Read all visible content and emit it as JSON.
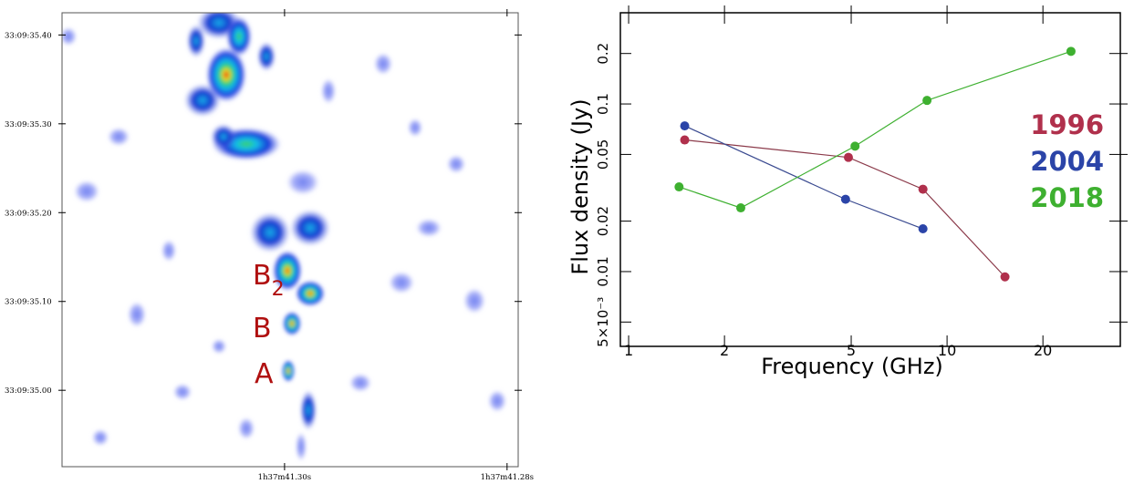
{
  "chart_data": [
    {
      "type": "image",
      "xlim": [
        41.32,
        41.279
      ],
      "xticks": [
        {
          "value": 41.3,
          "label": "1h37m41.30s"
        },
        {
          "value": 41.28,
          "label": "1h37m41.28s"
        }
      ],
      "ylim": [
        34.914,
        35.425
      ],
      "yticks": [
        {
          "value": 35.4,
          "label": "33:09:35.40"
        },
        {
          "value": 35.3,
          "label": "33:09:35.30"
        },
        {
          "value": 35.2,
          "label": "33:09:35.20"
        },
        {
          "value": 35.1,
          "label": "33:09:35.10"
        },
        {
          "value": 35.0,
          "label": "33:09:35.00"
        }
      ],
      "annotations": [
        {
          "text": "B",
          "sub": "2"
        },
        {
          "text": "B"
        },
        {
          "text": "A"
        }
      ]
    },
    {
      "type": "line",
      "xscale": "log",
      "yscale": "log",
      "x_label": "Frequency (GHz)",
      "y_label": "Flux density (Jy)",
      "xlim": [
        0.942,
        35.0
      ],
      "xticks": [
        1,
        2,
        5,
        10,
        20
      ],
      "ylim": [
        0.00358,
        0.35
      ],
      "yticks": [
        0.2,
        0.1,
        0.05,
        0.02,
        0.01,
        {
          "value": 0.005,
          "label": "5×10⁻³"
        }
      ],
      "series": [
        {
          "name": "1996",
          "color": "#b0304c",
          "line_color": "#8b3a4a",
          "x": [
            1.5,
            4.9,
            8.4,
            15.2
          ],
          "values": [
            0.061,
            0.048,
            0.031,
            0.0093
          ]
        },
        {
          "name": "2004",
          "color": "#2b44a8",
          "line_color": "#3a4a90",
          "x": [
            1.5,
            4.8,
            8.4
          ],
          "values": [
            0.074,
            0.027,
            0.018
          ]
        },
        {
          "name": "2018",
          "color": "#3eb030",
          "line_color": "#3eb030",
          "x": [
            1.44,
            2.25,
            5.14,
            8.65,
            24.5
          ],
          "values": [
            0.032,
            0.024,
            0.056,
            0.105,
            0.206
          ]
        }
      ]
    }
  ]
}
